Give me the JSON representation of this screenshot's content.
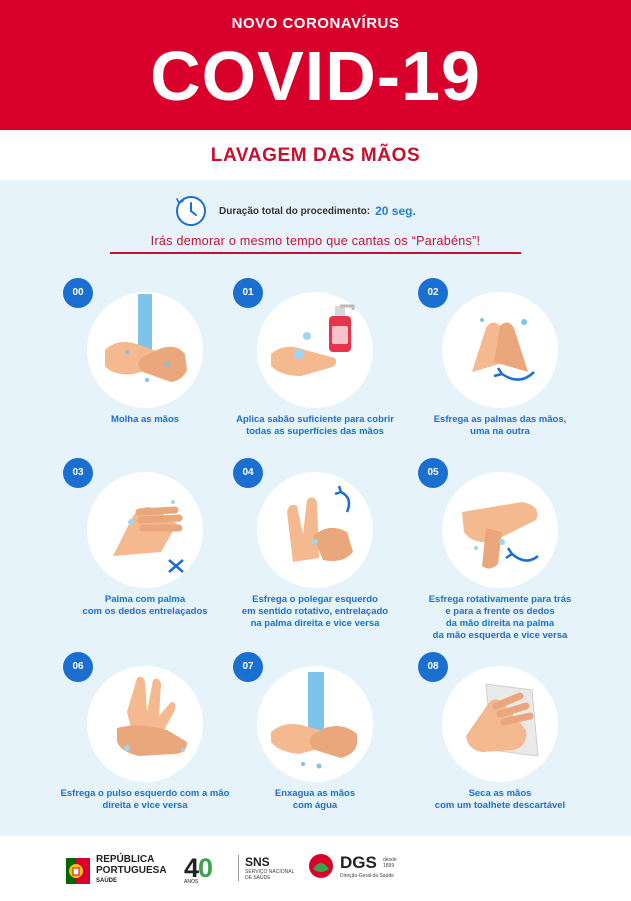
{
  "header": {
    "kicker": "NOVO CORONAVÍRUS",
    "title": "COVID-19"
  },
  "subtitle": "LAVAGEM DAS MÃOS",
  "duration": {
    "label": "Duração total do procedimento:",
    "value": "20 seg."
  },
  "tip": "Irás demorar o mesmo tempo que cantas os “Parabéns”!",
  "steps": [
    {
      "number": "00",
      "caption": [
        "Molha as mãos"
      ]
    },
    {
      "number": "01",
      "caption": [
        "Aplica sabão suficiente para cobrir",
        "todas as superfícies das mãos"
      ]
    },
    {
      "number": "02",
      "caption": [
        "Esfrega as palmas das mãos,",
        "uma na outra"
      ]
    },
    {
      "number": "03",
      "caption": [
        "Palma com palma",
        "com os dedos entrelaçados"
      ]
    },
    {
      "number": "04",
      "caption": [
        "Esfrega o polegar esquerdo",
        "em sentido rotativo, entrelaçado",
        "na palma direita e vice versa"
      ]
    },
    {
      "number": "05",
      "caption": [
        "Esfrega rotativamente para trás",
        "e para a frente os dedos",
        "da mão direita na palma",
        "da mão esquerda e vice versa"
      ]
    },
    {
      "number": "06",
      "caption": [
        "Esfrega o pulso esquerdo com a mão",
        "direita e vice versa"
      ]
    },
    {
      "number": "07",
      "caption": [
        "Enxagua as mãos",
        "com água"
      ]
    },
    {
      "number": "08",
      "caption": [
        "Seca as mãos",
        "com um toalhete descartável"
      ]
    }
  ],
  "footer": {
    "rp": {
      "line1": "REPÚBLICA",
      "line2": "PORTUGUESA",
      "line3": "SAÚDE"
    },
    "forty": {
      "four": "4",
      "zero": "0",
      "anos": "ANOS"
    },
    "sns": {
      "big": "SNS",
      "line1": "SERVIÇO NACIONAL",
      "line2": "DE SAÚDE"
    },
    "dgs": {
      "big": "DGS",
      "since1": "desde",
      "since2": "1899",
      "small": "Direção-Geral da Saúde"
    }
  },
  "colors": {
    "red": "#d8002b",
    "blue": "#1b6fd0",
    "background": "#e6f3fa",
    "skin": "#f5b98f",
    "water": "#7ec3ea"
  }
}
